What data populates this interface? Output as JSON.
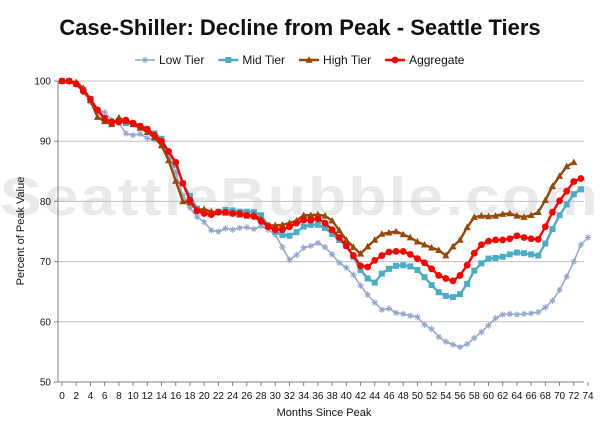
{
  "chart_data": {
    "type": "line",
    "title": "Case-Shiller: Decline from Peak - Seattle Tiers",
    "xlabel": "Months Since Peak",
    "ylabel": "Percent of Peak Value",
    "watermark": "SeattleBubble.com",
    "xlim": [
      0,
      74
    ],
    "ylim": [
      50,
      100
    ],
    "x_ticks": [
      0,
      2,
      4,
      6,
      8,
      10,
      12,
      14,
      16,
      18,
      20,
      22,
      24,
      26,
      28,
      30,
      32,
      34,
      36,
      38,
      40,
      42,
      44,
      46,
      48,
      50,
      52,
      54,
      56,
      58,
      60,
      62,
      64,
      66,
      68,
      70,
      72,
      74
    ],
    "y_ticks": [
      50,
      60,
      70,
      80,
      90,
      100
    ],
    "grid": "horizontal",
    "legend_position": "top",
    "series": [
      {
        "name": "Low Tier",
        "color": "#8fa6cf",
        "marker": "star",
        "values": [
          100,
          99.9,
          99.6,
          98.2,
          96.5,
          95.2,
          94.8,
          93.5,
          93.0,
          91.3,
          91.0,
          91.2,
          90.5,
          90.3,
          89.6,
          87.5,
          84.8,
          81.0,
          79.0,
          77.4,
          76.6,
          75.2,
          75.0,
          75.5,
          75.3,
          75.6,
          75.7,
          75.4,
          75.9,
          75.3,
          74.5,
          72.4,
          70.3,
          71.1,
          72.3,
          72.6,
          73.1,
          72.4,
          71.2,
          69.8,
          69.0,
          67.8,
          66.0,
          64.5,
          63.2,
          62.0,
          62.2,
          61.5,
          61.3,
          61.0,
          60.8,
          59.5,
          58.8,
          57.5,
          56.7,
          56.2,
          55.8,
          56.3,
          57.3,
          58.3,
          59.4,
          60.6,
          61.2,
          61.3,
          61.2,
          61.3,
          61.4,
          61.6,
          62.4,
          63.5,
          65.3,
          67.5,
          70.0,
          72.8,
          74.0
        ]
      },
      {
        "name": "Mid Tier",
        "color": "#4bacc6",
        "marker": "square",
        "values": [
          100,
          100,
          99.5,
          98.5,
          97.0,
          95.0,
          93.7,
          93.0,
          93.4,
          93.0,
          92.9,
          92.5,
          92.0,
          91.3,
          90.4,
          88.2,
          86.1,
          83.0,
          80.9,
          78.8,
          78.2,
          78.0,
          78.3,
          78.6,
          78.5,
          78.3,
          78.3,
          78.2,
          77.7,
          76.0,
          75.0,
          74.4,
          74.3,
          74.9,
          75.8,
          76.1,
          76.1,
          75.6,
          74.6,
          73.6,
          72.6,
          70.8,
          68.6,
          67.2,
          66.5,
          68.0,
          68.8,
          69.3,
          69.4,
          69.2,
          68.6,
          67.4,
          66.1,
          64.9,
          64.3,
          64.1,
          64.6,
          66.3,
          68.5,
          69.7,
          70.5,
          70.6,
          70.8,
          71.2,
          71.5,
          71.4,
          71.2,
          71.0,
          73.0,
          75.4,
          77.7,
          79.5,
          81.2,
          82.0
        ]
      },
      {
        "name": "High Tier",
        "color": "#984807",
        "marker": "triangle",
        "values": [
          100,
          100,
          99.8,
          98.8,
          96.8,
          94.0,
          93.3,
          92.8,
          93.9,
          93.3,
          92.8,
          92.2,
          91.5,
          90.6,
          89.3,
          86.8,
          83.4,
          80.0,
          79.8,
          78.6,
          78.7,
          78.3,
          78.2,
          78.1,
          78.0,
          77.8,
          77.6,
          77.8,
          77.0,
          76.0,
          76.0,
          76.1,
          76.4,
          76.8,
          77.7,
          77.7,
          77.8,
          77.6,
          76.8,
          75.2,
          73.6,
          72.4,
          71.3,
          72.5,
          73.6,
          74.6,
          74.8,
          75.0,
          74.5,
          74.0,
          73.3,
          72.8,
          72.3,
          71.9,
          71.0,
          72.5,
          73.6,
          75.7,
          77.4,
          77.6,
          77.5,
          77.6,
          77.9,
          78.0,
          77.6,
          77.4,
          77.7,
          78.2,
          80.2,
          82.5,
          84.2,
          85.8,
          86.5
        ]
      },
      {
        "name": "Aggregate",
        "color": "#ff0000",
        "marker": "circle",
        "values": [
          100,
          100,
          99.5,
          98.3,
          97.0,
          95.2,
          93.8,
          93.2,
          93.2,
          93.5,
          93.0,
          92.5,
          92.0,
          91.0,
          90.0,
          88.3,
          86.5,
          83.0,
          80.2,
          78.4,
          78.0,
          77.8,
          78.2,
          78.2,
          78.0,
          78.0,
          77.7,
          77.5,
          76.7,
          75.8,
          75.3,
          75.3,
          75.8,
          76.4,
          76.9,
          76.9,
          77.1,
          76.4,
          75.3,
          74.0,
          72.6,
          71.0,
          69.3,
          69.1,
          70.2,
          71.0,
          71.6,
          71.7,
          71.7,
          71.2,
          70.5,
          69.8,
          68.8,
          67.7,
          67.2,
          66.8,
          67.7,
          69.4,
          71.4,
          72.8,
          73.4,
          73.6,
          73.6,
          73.8,
          74.3,
          74.0,
          73.8,
          73.7,
          75.8,
          78.2,
          80.1,
          81.7,
          83.3,
          83.8
        ]
      }
    ]
  }
}
